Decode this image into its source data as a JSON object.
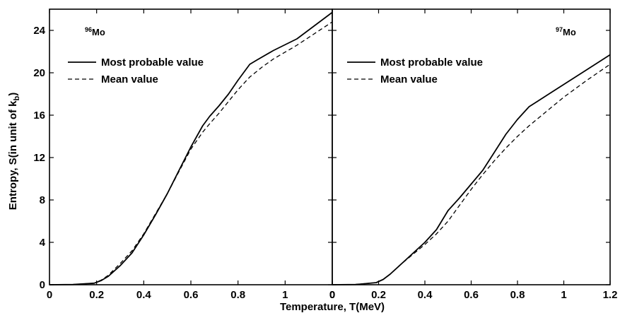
{
  "chart_data": [
    {
      "type": "line",
      "panel": "left",
      "annotation": {
        "mass": "96",
        "element": "Mo"
      },
      "ylabel_main": "Entropy, S(in unit of k",
      "ylabel_sub": "b",
      "ylabel_close": ")",
      "x_ticks": [
        "0",
        "0.2",
        "0.4",
        "0.6",
        "0.8",
        "1",
        "0"
      ],
      "y_ticks": [
        "0",
        "4",
        "8",
        "12",
        "16",
        "20",
        "24"
      ],
      "xlim": [
        0,
        1.2
      ],
      "ylim": [
        0,
        26
      ],
      "legend": {
        "placement": "upper-left",
        "entries": [
          "Most probable value",
          "Mean value"
        ]
      },
      "series": [
        {
          "name": "Most probable value",
          "style": "solid",
          "x": [
            0.0,
            0.1,
            0.19,
            0.22,
            0.25,
            0.3,
            0.35,
            0.4,
            0.45,
            0.5,
            0.55,
            0.6,
            0.65,
            0.68,
            0.72,
            0.76,
            0.8,
            0.85,
            0.88,
            0.95,
            1.05,
            1.2
          ],
          "y": [
            0,
            0.02,
            0.15,
            0.4,
            0.8,
            1.8,
            3.0,
            4.7,
            6.6,
            8.6,
            10.8,
            13.0,
            15.0,
            15.9,
            16.9,
            18.0,
            19.3,
            20.8,
            21.2,
            22.1,
            23.2,
            25.7
          ]
        },
        {
          "name": "Mean value",
          "style": "dashed",
          "x": [
            0.0,
            0.1,
            0.19,
            0.22,
            0.25,
            0.3,
            0.35,
            0.4,
            0.45,
            0.5,
            0.55,
            0.6,
            0.65,
            0.68,
            0.72,
            0.76,
            0.8,
            0.85,
            0.9,
            0.95,
            1.05,
            1.2
          ],
          "y": [
            0,
            0.02,
            0.15,
            0.45,
            0.9,
            2.0,
            3.2,
            4.8,
            6.7,
            8.6,
            10.7,
            12.8,
            14.4,
            15.2,
            16.2,
            17.3,
            18.4,
            19.6,
            20.5,
            21.3,
            22.6,
            24.8
          ]
        }
      ]
    },
    {
      "type": "line",
      "panel": "right",
      "annotation": {
        "mass": "97",
        "element": "Mo"
      },
      "x_ticks": [
        "0",
        "0.2",
        "0.4",
        "0.6",
        "0.8",
        "1",
        "1.2"
      ],
      "xlabel": "Temperature, T(MeV)",
      "xlim": [
        0,
        1.2
      ],
      "ylim": [
        0,
        26
      ],
      "legend": {
        "placement": "upper-left",
        "entries": [
          "Most probable value",
          "Mean value"
        ]
      },
      "series": [
        {
          "name": "Most probable value",
          "style": "solid",
          "x": [
            0.0,
            0.1,
            0.19,
            0.22,
            0.25,
            0.3,
            0.35,
            0.4,
            0.45,
            0.5,
            0.55,
            0.6,
            0.65,
            0.7,
            0.75,
            0.8,
            0.85,
            0.9,
            0.95,
            1.0,
            1.1,
            1.2
          ],
          "y": [
            0,
            0.02,
            0.2,
            0.5,
            1.0,
            2.0,
            3.0,
            4.0,
            5.2,
            7.0,
            8.2,
            9.5,
            10.8,
            12.5,
            14.2,
            15.6,
            16.8,
            17.5,
            18.2,
            18.9,
            20.3,
            21.7
          ]
        },
        {
          "name": "Mean value",
          "style": "dashed",
          "x": [
            0.0,
            0.1,
            0.19,
            0.22,
            0.25,
            0.3,
            0.35,
            0.4,
            0.45,
            0.5,
            0.55,
            0.6,
            0.65,
            0.7,
            0.75,
            0.8,
            0.85,
            0.9,
            0.95,
            1.0,
            1.1,
            1.2
          ],
          "y": [
            0,
            0.02,
            0.2,
            0.5,
            1.0,
            2.0,
            2.9,
            3.8,
            4.8,
            6.0,
            7.5,
            9.0,
            10.4,
            11.7,
            12.9,
            14.0,
            15.0,
            15.9,
            16.8,
            17.7,
            19.3,
            20.8
          ]
        }
      ]
    }
  ]
}
